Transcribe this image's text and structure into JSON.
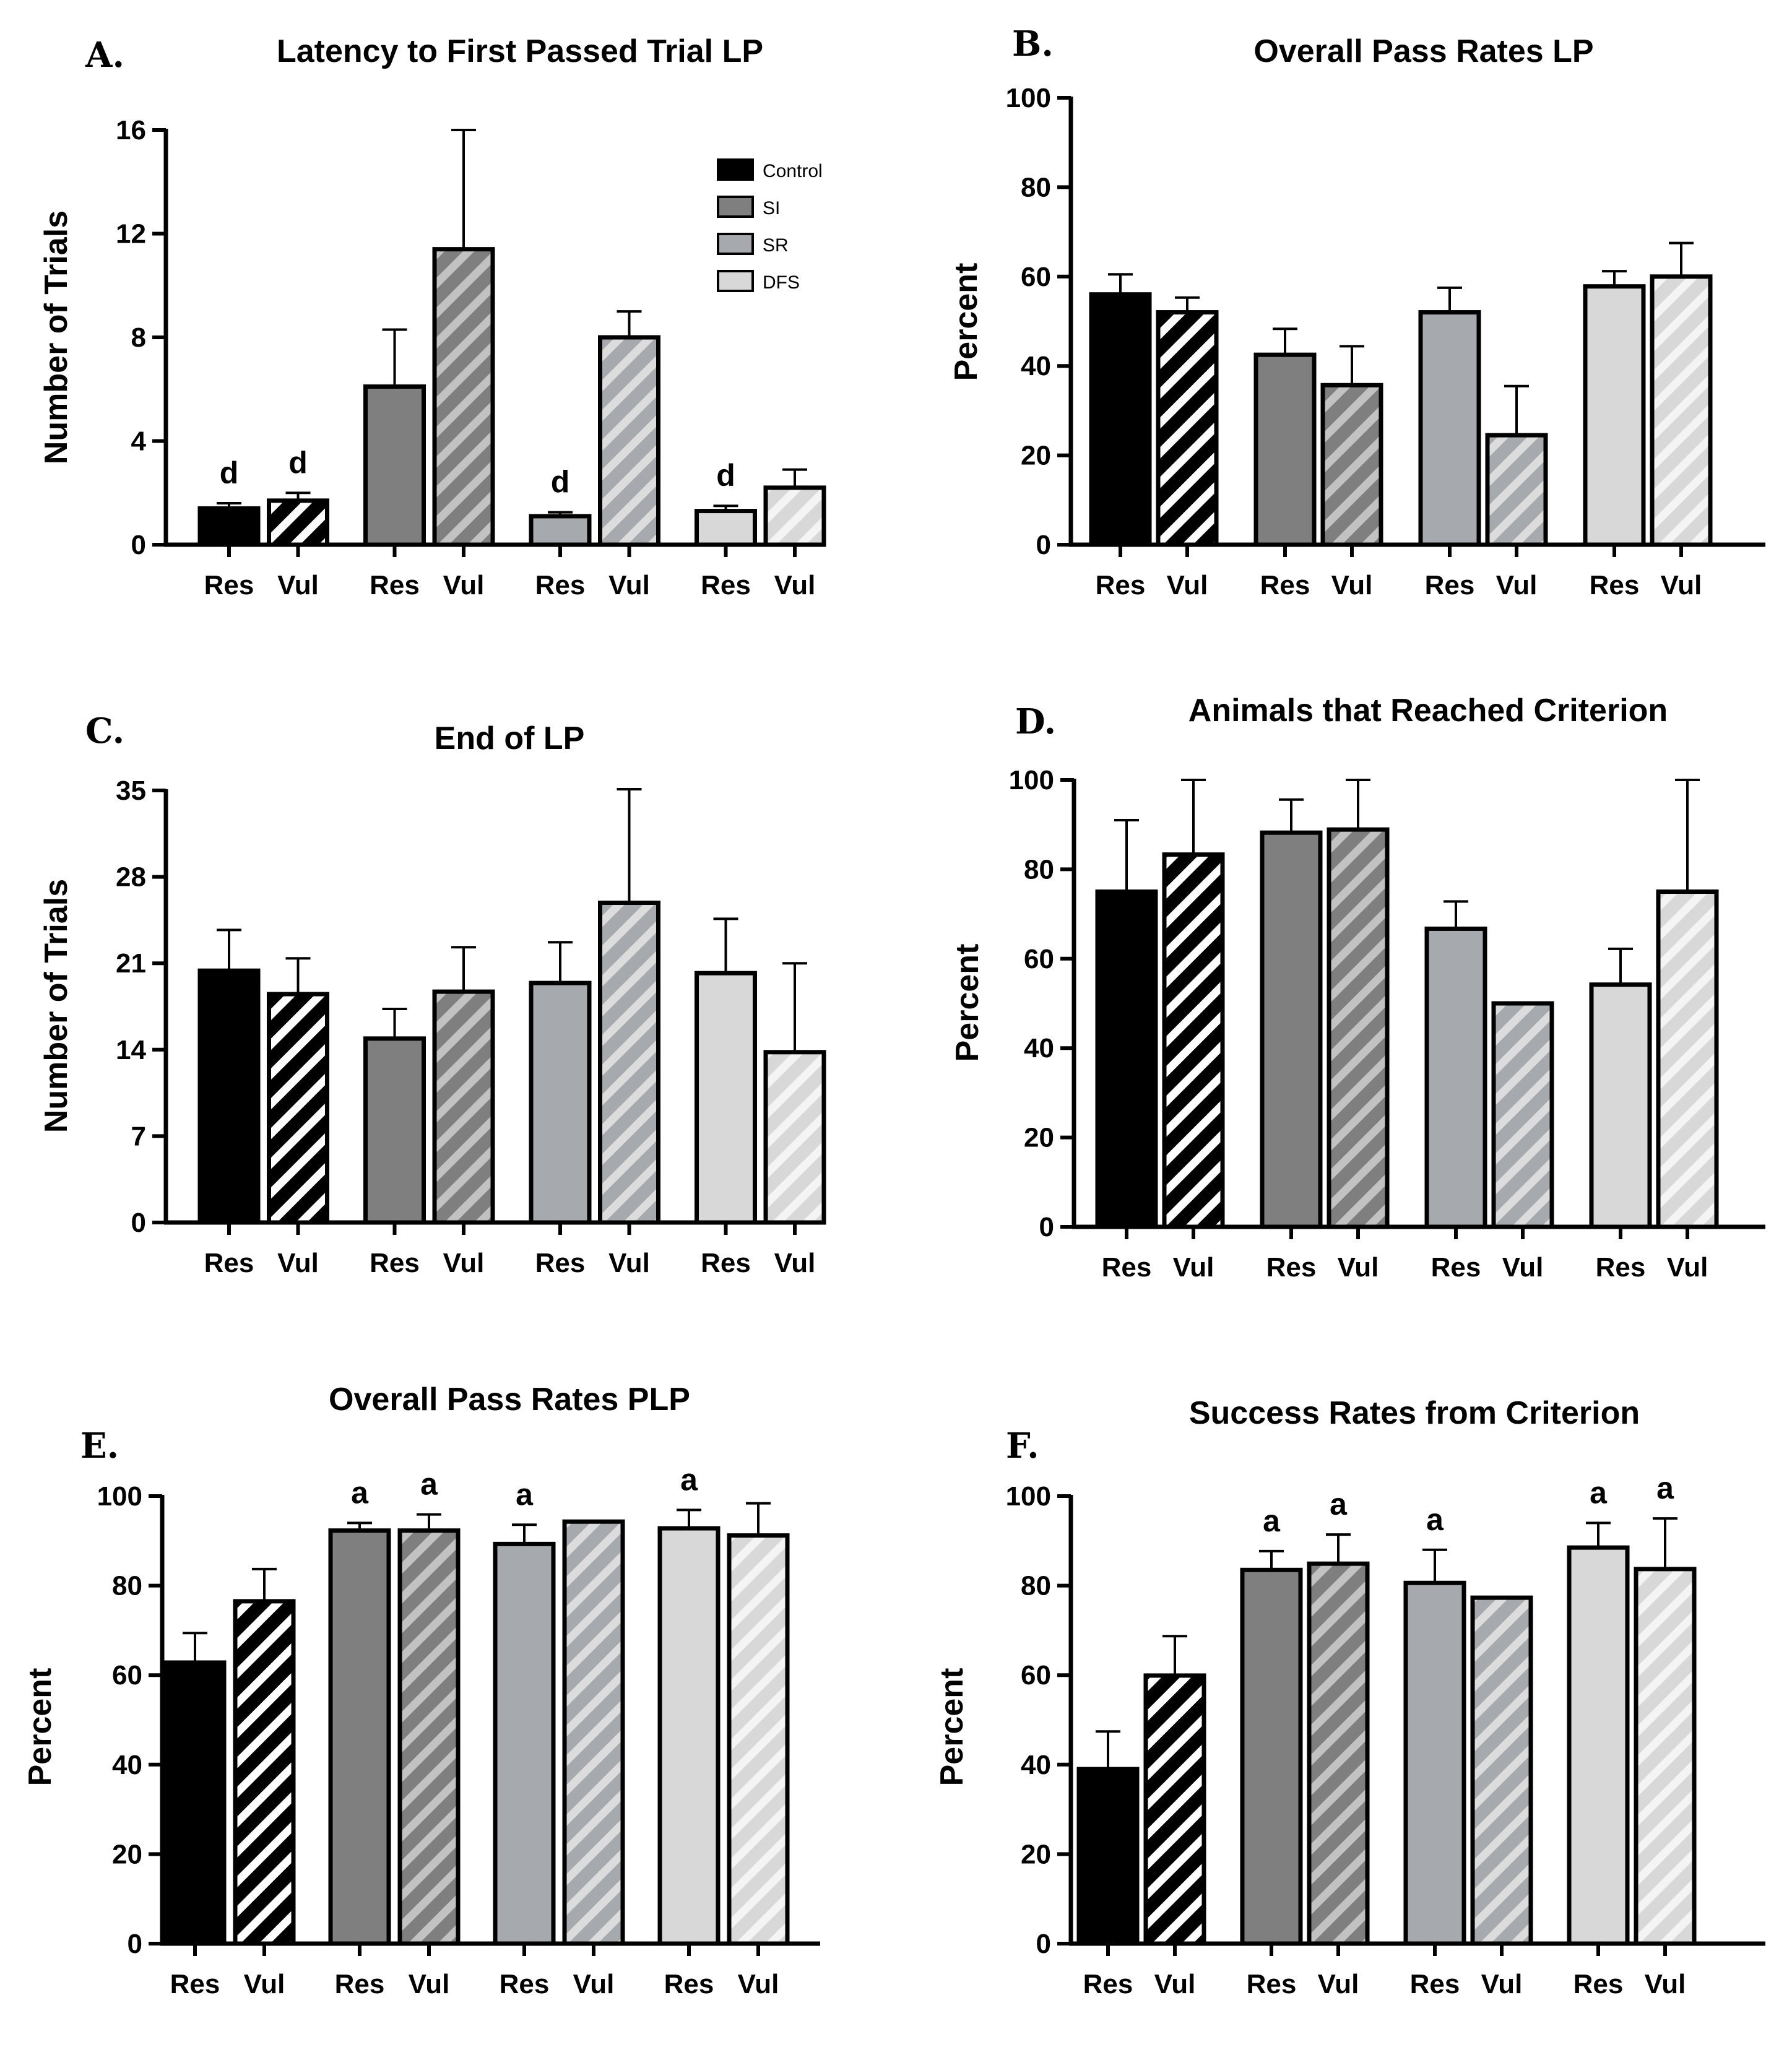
{
  "colors": {
    "Control": "#000000",
    "SI": "#7f7f7f",
    "SR": "#a6a9ad",
    "DFS": "#d8d8d8",
    "Control_stripe": "#ffffff",
    "SI_stripe": "#c2c2c2",
    "SR_stripe": "#dcdcdc",
    "DFS_stripe": "#f4f4f4"
  },
  "legend": {
    "placement": "top-right",
    "entries": [
      "Control",
      "SI",
      "SR",
      "DFS"
    ]
  },
  "chart_data": [
    {
      "id": "A",
      "letter": "A.",
      "type": "bar",
      "title": "Latency to First Passed Trial LP",
      "ylabel": "Number of Trials",
      "ylim": [
        0,
        16
      ],
      "yticks": [
        "0",
        "4",
        "8",
        "12",
        "16"
      ],
      "groups": [
        "Control",
        "SI",
        "SR",
        "DFS"
      ],
      "categories": [
        "Res",
        "Vul",
        "Res",
        "Vul",
        "Res",
        "Vul",
        "Res",
        "Vul"
      ],
      "values": [
        1.4,
        1.7,
        6.1,
        11.4,
        1.1,
        8.0,
        1.3,
        2.2
      ],
      "errors": [
        0.2,
        0.3,
        2.2,
        4.6,
        0.15,
        1.0,
        0.2,
        0.7
      ],
      "annotations": [
        "d",
        "d",
        "",
        "",
        "d",
        "",
        "d",
        ""
      ],
      "has_legend": true
    },
    {
      "id": "B",
      "letter": "B.",
      "type": "bar",
      "title": "Overall Pass Rates LP",
      "ylabel": "Percent",
      "ylim": [
        0,
        100
      ],
      "yticks": [
        "0",
        "20",
        "40",
        "60",
        "80",
        "100"
      ],
      "groups": [
        "Control",
        "SI",
        "SR",
        "DFS"
      ],
      "categories": [
        "Res",
        "Vul",
        "Res",
        "Vul",
        "Res",
        "Vul",
        "Res",
        "Vul"
      ],
      "values": [
        56,
        52,
        42.5,
        35.7,
        52,
        24.5,
        57.8,
        60
      ],
      "errors": [
        4.5,
        3.3,
        5.8,
        8.7,
        5.5,
        11,
        3.4,
        7.5
      ],
      "annotations": [
        "",
        "",
        "",
        "",
        "",
        "",
        "",
        ""
      ],
      "has_legend": false
    },
    {
      "id": "C",
      "letter": "C.",
      "type": "bar",
      "title": "End of LP",
      "ylabel": "Number of Trials",
      "ylim": [
        0,
        35
      ],
      "yticks": [
        "0",
        "7",
        "14",
        "21",
        "28",
        "35"
      ],
      "groups": [
        "Control",
        "SI",
        "SR",
        "DFS"
      ],
      "categories": [
        "Res",
        "Vul",
        "Res",
        "Vul",
        "Res",
        "Vul",
        "Res",
        "Vul"
      ],
      "values": [
        20.4,
        18.5,
        14.9,
        18.7,
        19.4,
        25.9,
        20.2,
        13.8
      ],
      "errors": [
        3.3,
        2.9,
        2.4,
        3.6,
        3.3,
        9.2,
        4.4,
        7.2
      ],
      "annotations": [
        "",
        "",
        "",
        "",
        "",
        "",
        "",
        ""
      ],
      "has_legend": false
    },
    {
      "id": "D",
      "letter": "D.",
      "type": "bar",
      "title": "Animals that Reached Criterion",
      "ylabel": "Percent",
      "ylim": [
        0,
        100
      ],
      "yticks": [
        "0",
        "20",
        "40",
        "60",
        "80",
        "100"
      ],
      "groups": [
        "Control",
        "SI",
        "SR",
        "DFS"
      ],
      "categories": [
        "Res",
        "Vul",
        "Res",
        "Vul",
        "Res",
        "Vul",
        "Res",
        "Vul"
      ],
      "values": [
        75,
        83.3,
        88.2,
        88.9,
        66.7,
        50,
        54.2,
        75
      ],
      "errors": [
        16,
        16.7,
        7.4,
        11.1,
        6.1,
        0,
        8,
        25
      ],
      "annotations": [
        "",
        "",
        "",
        "",
        "",
        "",
        "",
        ""
      ],
      "has_legend": false
    },
    {
      "id": "E",
      "letter": "E.",
      "type": "bar",
      "title": "Overall Pass Rates PLP",
      "ylabel": "Percent",
      "ylim": [
        0,
        100
      ],
      "yticks": [
        "0",
        "20",
        "40",
        "60",
        "80",
        "100"
      ],
      "groups": [
        "Control",
        "SI",
        "SR",
        "DFS"
      ],
      "categories": [
        "Res",
        "Vul",
        "Res",
        "Vul",
        "Res",
        "Vul",
        "Res",
        "Vul"
      ],
      "values": [
        62.8,
        76.5,
        92.3,
        92.3,
        89.3,
        94.3,
        92.8,
        91.2
      ],
      "errors": [
        6.6,
        7.2,
        1.7,
        3.6,
        4.3,
        0,
        4.1,
        7.2
      ],
      "annotations": [
        "",
        "",
        "a",
        "a",
        "a",
        "",
        "a",
        ""
      ],
      "has_legend": false
    },
    {
      "id": "F",
      "letter": "F.",
      "type": "bar",
      "title": "Success Rates from Criterion",
      "ylabel": "Percent",
      "ylim": [
        0,
        100
      ],
      "yticks": [
        "0",
        "20",
        "40",
        "60",
        "80",
        "100"
      ],
      "groups": [
        "Control",
        "SI",
        "SR",
        "DFS"
      ],
      "categories": [
        "Res",
        "Vul",
        "Res",
        "Vul",
        "Res",
        "Vul",
        "Res",
        "Vul"
      ],
      "values": [
        39,
        59.9,
        83.5,
        84.9,
        80.6,
        77.3,
        88.5,
        83.7
      ],
      "errors": [
        8.4,
        8.8,
        4.2,
        6.5,
        7.4,
        0,
        5.5,
        11.3
      ],
      "annotations": [
        "",
        "",
        "a",
        "a",
        "a",
        "",
        "a",
        "a"
      ],
      "has_legend": false
    }
  ]
}
